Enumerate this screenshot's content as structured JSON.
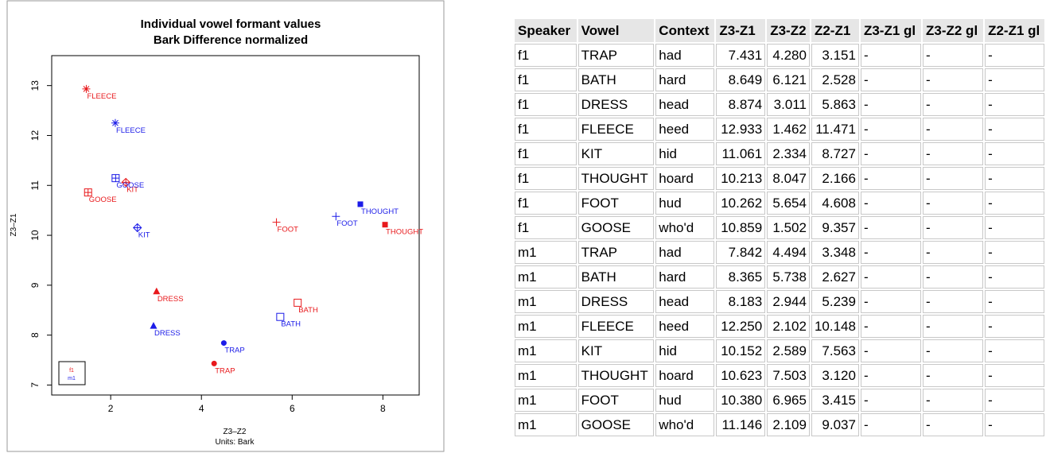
{
  "chart_data": {
    "type": "scatter",
    "title": "Individual vowel formant values",
    "subtitle": "Bark Difference normalized",
    "xlabel": "Z3–Z2",
    "xlabel_units": "Units: Bark",
    "ylabel": "Z3–Z1",
    "xlim": [
      0.7,
      8.8
    ],
    "ylim": [
      6.8,
      13.6
    ],
    "xticks": [
      "2",
      "4",
      "6",
      "8"
    ],
    "yticks": [
      "7",
      "8",
      "9",
      "10",
      "11",
      "12",
      "13"
    ],
    "legend": {
      "position": "bottom-left",
      "entries": [
        "f1",
        "m1"
      ]
    },
    "series": [
      {
        "name": "f1",
        "color": "#e8191c",
        "points": [
          {
            "vowel": "TRAP",
            "x": 4.28,
            "y": 7.431,
            "marker": "circle-filled"
          },
          {
            "vowel": "BATH",
            "x": 6.121,
            "y": 8.649,
            "marker": "square-open"
          },
          {
            "vowel": "DRESS",
            "x": 3.011,
            "y": 8.874,
            "marker": "triangle-filled"
          },
          {
            "vowel": "FLEECE",
            "x": 1.462,
            "y": 12.933,
            "marker": "asterisk"
          },
          {
            "vowel": "KIT",
            "x": 2.334,
            "y": 11.061,
            "marker": "diamond-plus"
          },
          {
            "vowel": "THOUGHT",
            "x": 8.047,
            "y": 10.213,
            "marker": "square-filled"
          },
          {
            "vowel": "FOOT",
            "x": 5.654,
            "y": 10.262,
            "marker": "plus"
          },
          {
            "vowel": "GOOSE",
            "x": 1.502,
            "y": 10.859,
            "marker": "square-plus"
          }
        ]
      },
      {
        "name": "m1",
        "color": "#1c1ce8",
        "points": [
          {
            "vowel": "TRAP",
            "x": 4.494,
            "y": 7.842,
            "marker": "circle-filled"
          },
          {
            "vowel": "BATH",
            "x": 5.738,
            "y": 8.365,
            "marker": "square-open"
          },
          {
            "vowel": "DRESS",
            "x": 2.944,
            "y": 8.183,
            "marker": "triangle-filled"
          },
          {
            "vowel": "FLEECE",
            "x": 2.102,
            "y": 12.25,
            "marker": "asterisk"
          },
          {
            "vowel": "KIT",
            "x": 2.589,
            "y": 10.152,
            "marker": "diamond-plus"
          },
          {
            "vowel": "THOUGHT",
            "x": 7.503,
            "y": 10.623,
            "marker": "square-filled"
          },
          {
            "vowel": "FOOT",
            "x": 6.965,
            "y": 10.38,
            "marker": "plus"
          },
          {
            "vowel": "GOOSE",
            "x": 2.109,
            "y": 11.146,
            "marker": "square-plus"
          }
        ]
      }
    ]
  },
  "table": {
    "headers": [
      "Speaker",
      "Vowel",
      "Context",
      "Z3-Z1",
      "Z3-Z2",
      "Z2-Z1",
      "Z3-Z1 gl",
      "Z3-Z2 gl",
      "Z2-Z1 gl"
    ],
    "rows": [
      [
        "f1",
        "TRAP",
        "had",
        "7.431",
        "4.280",
        "3.151",
        "-",
        "-",
        "-"
      ],
      [
        "f1",
        "BATH",
        "hard",
        "8.649",
        "6.121",
        "2.528",
        "-",
        "-",
        "-"
      ],
      [
        "f1",
        "DRESS",
        "head",
        "8.874",
        "3.011",
        "5.863",
        "-",
        "-",
        "-"
      ],
      [
        "f1",
        "FLEECE",
        "heed",
        "12.933",
        "1.462",
        "11.471",
        "-",
        "-",
        "-"
      ],
      [
        "f1",
        "KIT",
        "hid",
        "11.061",
        "2.334",
        "8.727",
        "-",
        "-",
        "-"
      ],
      [
        "f1",
        "THOUGHT",
        "hoard",
        "10.213",
        "8.047",
        "2.166",
        "-",
        "-",
        "-"
      ],
      [
        "f1",
        "FOOT",
        "hud",
        "10.262",
        "5.654",
        "4.608",
        "-",
        "-",
        "-"
      ],
      [
        "f1",
        "GOOSE",
        "who'd",
        "10.859",
        "1.502",
        "9.357",
        "-",
        "-",
        "-"
      ],
      [
        "m1",
        "TRAP",
        "had",
        "7.842",
        "4.494",
        "3.348",
        "-",
        "-",
        "-"
      ],
      [
        "m1",
        "BATH",
        "hard",
        "8.365",
        "5.738",
        "2.627",
        "-",
        "-",
        "-"
      ],
      [
        "m1",
        "DRESS",
        "head",
        "8.183",
        "2.944",
        "5.239",
        "-",
        "-",
        "-"
      ],
      [
        "m1",
        "FLEECE",
        "heed",
        "12.250",
        "2.102",
        "10.148",
        "-",
        "-",
        "-"
      ],
      [
        "m1",
        "KIT",
        "hid",
        "10.152",
        "2.589",
        "7.563",
        "-",
        "-",
        "-"
      ],
      [
        "m1",
        "THOUGHT",
        "hoard",
        "10.623",
        "7.503",
        "3.120",
        "-",
        "-",
        "-"
      ],
      [
        "m1",
        "FOOT",
        "hud",
        "10.380",
        "6.965",
        "3.415",
        "-",
        "-",
        "-"
      ],
      [
        "m1",
        "GOOSE",
        "who'd",
        "11.146",
        "2.109",
        "9.037",
        "-",
        "-",
        "-"
      ]
    ]
  }
}
